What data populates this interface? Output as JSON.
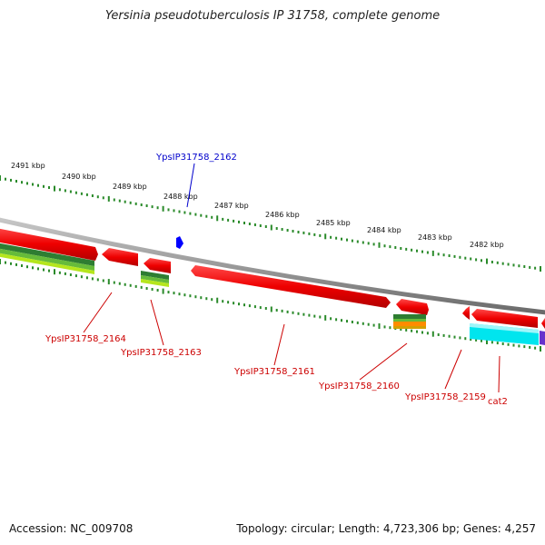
{
  "title": "Yersinia pseudotuberculosis IP 31758, complete genome",
  "accession": "Accession: NC_009708",
  "summary": "Topology: circular; Length: 4,723,306 bp; Genes: 4,257",
  "tick_labels": [
    "2491 kbp",
    "2490 kbp",
    "2489 kbp",
    "2488 kbp",
    "2487 kbp",
    "2486 kbp",
    "2485 kbp",
    "2484 kbp",
    "2483 kbp",
    "2482 kbp"
  ],
  "genes": [
    {
      "name": "YpsIP31758_2162",
      "color": "#0000cc"
    },
    {
      "name": "YpsIP31758_2164",
      "color": "#cc0000"
    },
    {
      "name": "YpsIP31758_2163",
      "color": "#cc0000"
    },
    {
      "name": "YpsIP31758_2161",
      "color": "#cc0000"
    },
    {
      "name": "YpsIP31758_2160",
      "color": "#cc0000"
    },
    {
      "name": "YpsIP31758_2159",
      "color": "#cc0000"
    },
    {
      "name": "cat2",
      "color": "#cc0000"
    }
  ],
  "colors": {
    "backbone": "#8a8a8a",
    "gene": "#ee0000",
    "tick": "#2a8a2a",
    "feature_green_dark": "#2e7d32",
    "feature_green_light": "#b5e61d",
    "feature_orange": "#ff8c00",
    "feature_cyan": "#00e5ee",
    "feature_purple": "#6633cc",
    "blue_gene": "#0000ff"
  }
}
